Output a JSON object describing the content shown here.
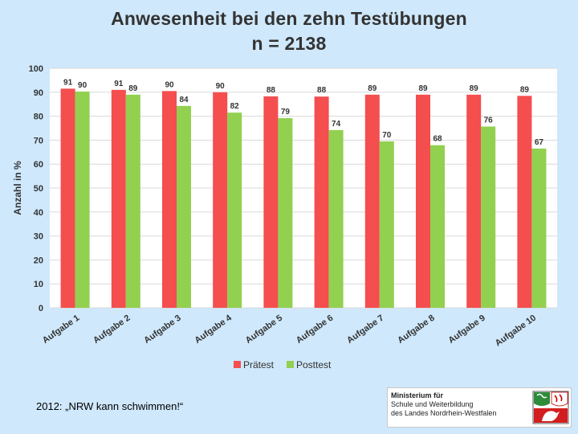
{
  "chart_data": {
    "type": "bar",
    "title": "Anwesenheit bei den zehn Testübungen",
    "subtitle": "n = 2138",
    "xlabel": "",
    "ylabel": "Anzahl in %",
    "ylim": [
      0,
      100
    ],
    "yticks": [
      0,
      10,
      20,
      30,
      40,
      50,
      60,
      70,
      80,
      90,
      100
    ],
    "grid": true,
    "legend_position": "bottom",
    "categories": [
      "Aufgabe 1",
      "Aufgabe 2",
      "Aufgabe 3",
      "Aufgabe 4",
      "Aufgabe 5",
      "Aufgabe 6",
      "Aufgabe 7",
      "Aufgabe 8",
      "Aufgabe 9",
      "Aufgabe 10"
    ],
    "series": [
      {
        "name": "Prätest",
        "color": "#f44e4e",
        "values": [
          91,
          91,
          90,
          90,
          88,
          88,
          89,
          89,
          89,
          89
        ],
        "shown": [
          91.5,
          91,
          90.5,
          90,
          88.3,
          88.2,
          89,
          89,
          89,
          88.5
        ]
      },
      {
        "name": "Posttest",
        "color": "#92d050",
        "values": [
          90,
          89,
          84,
          82,
          79,
          74,
          70,
          68,
          76,
          67
        ],
        "shown": [
          90.3,
          89,
          84.3,
          81.5,
          79.2,
          74.2,
          69.5,
          67.9,
          75.7,
          66.5
        ]
      }
    ]
  },
  "footer": {
    "caption": "2012: „NRW kann schwimmen!“",
    "logo_line1": "Ministerium für",
    "logo_line2": "Schule und Weiterbildung",
    "logo_line3": "des Landes Nordrhein-Westfalen"
  }
}
